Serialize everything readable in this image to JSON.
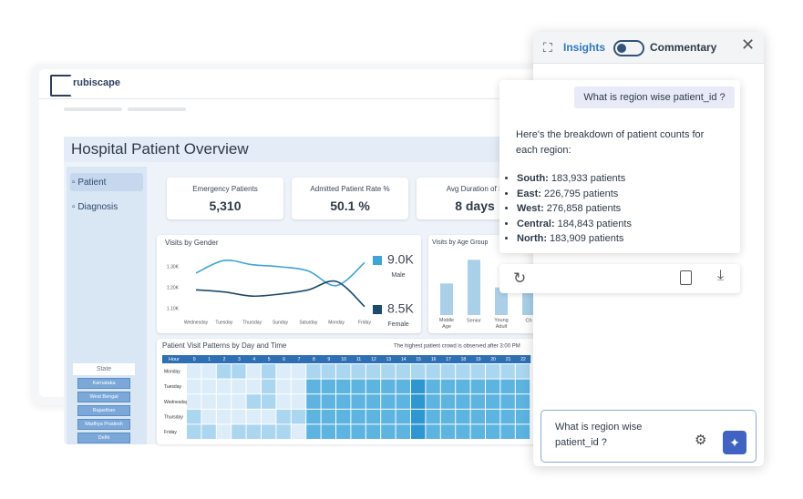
{
  "header": {
    "logo": "rubiscape"
  },
  "dashboard": {
    "title": "Hospital Patient Overview",
    "nav": [
      "Patient",
      "Diagnosis"
    ],
    "filter": {
      "title": "State",
      "options": [
        "Karnataka",
        "West Bengal",
        "Rajasthan",
        "Madhya Pradesh",
        "Delhi"
      ]
    },
    "kpis": [
      {
        "label": "Emergency Patients",
        "value": "5,310"
      },
      {
        "label": "Admitted Patient Rate %",
        "value": "50.1 %"
      },
      {
        "label": "Avg Duration of S",
        "value": "8 days"
      }
    ]
  },
  "chart_data": [
    {
      "type": "line",
      "title": "Visits by Gender",
      "categories": [
        "Wednesday",
        "Tuesday",
        "Thursday",
        "Sunday",
        "Saturday",
        "Monday",
        "Friday"
      ],
      "series": [
        {
          "name": "Male",
          "color": "#3ea4dc",
          "total": 9000,
          "total_label": "9.0K",
          "values": [
            1270,
            1330,
            1310,
            1300,
            1280,
            1210,
            1320
          ]
        },
        {
          "name": "Female",
          "color": "#1b4a6e",
          "total": 8500,
          "total_label": "8.5K",
          "values": [
            1190,
            1180,
            1160,
            1170,
            1190,
            1230,
            1110
          ]
        }
      ],
      "ylim": [
        1050,
        1350
      ],
      "yticks": [
        {
          "value": 1100,
          "label": "1.10K"
        },
        {
          "value": 1200,
          "label": "1.20K"
        },
        {
          "value": 1300,
          "label": "1.30K"
        }
      ]
    },
    {
      "type": "bar",
      "title": "Visits by Age Group",
      "categories": [
        "Middle Age",
        "Senior",
        "Young Adult",
        "Ch"
      ],
      "values": [
        4000,
        7000,
        3500,
        3000
      ],
      "color": "#a9d0e8",
      "ylim": [
        0,
        7500
      ]
    },
    {
      "type": "heatmap",
      "title": "Patient Visit Patterns by Day and Time",
      "annotation": "The highest patient crowd is observed after 3:00 PM",
      "corner": "Hour",
      "x": [
        "0",
        "1",
        "2",
        "3",
        "4",
        "5",
        "6",
        "7",
        "8",
        "9",
        "10",
        "11",
        "12",
        "13",
        "14",
        "15",
        "16",
        "17",
        "18",
        "19",
        "20",
        "21",
        "22"
      ],
      "y": [
        "Monday",
        "Tuesday",
        "Wednesday",
        "Thursday",
        "Friday"
      ],
      "colors": [
        "#dcedf9",
        "#aad6ef",
        "#5db4e1",
        "#2e96d0"
      ],
      "values": [
        [
          1,
          1,
          2,
          2,
          1,
          2,
          1,
          1,
          2,
          2,
          2,
          2,
          2,
          2,
          2,
          2,
          2,
          2,
          2,
          2,
          2,
          2,
          2
        ],
        [
          1,
          1,
          1,
          1,
          1,
          2,
          1,
          1,
          3,
          3,
          3,
          3,
          3,
          3,
          3,
          4,
          3,
          3,
          3,
          3,
          3,
          3,
          3
        ],
        [
          1,
          1,
          1,
          1,
          2,
          2,
          1,
          1,
          3,
          3,
          3,
          3,
          3,
          3,
          3,
          4,
          3,
          3,
          3,
          3,
          3,
          3,
          3
        ],
        [
          2,
          1,
          1,
          1,
          1,
          1,
          2,
          2,
          3,
          3,
          3,
          3,
          3,
          3,
          3,
          4,
          3,
          3,
          3,
          3,
          3,
          3,
          3
        ],
        [
          2,
          2,
          1,
          2,
          2,
          2,
          2,
          1,
          3,
          3,
          3,
          3,
          3,
          3,
          3,
          4,
          3,
          3,
          3,
          3,
          3,
          3,
          3
        ]
      ]
    }
  ],
  "chat": {
    "tabs": [
      "Insights",
      "Commentary"
    ],
    "question": "What is region wise patient_id ?",
    "answer_intro": "Here's the breakdown of patient counts for each region:",
    "items": [
      {
        "region": "South:",
        "text": " 183,933 patients"
      },
      {
        "region": "East:",
        "text": " 226,795 patients"
      },
      {
        "region": "West:",
        "text": " 276,858 patients"
      },
      {
        "region": "Central:",
        "text": " 184,843 patients"
      },
      {
        "region": "North:",
        "text": " 183,909 patients"
      }
    ],
    "input": "What is region wise patient_id ?"
  }
}
